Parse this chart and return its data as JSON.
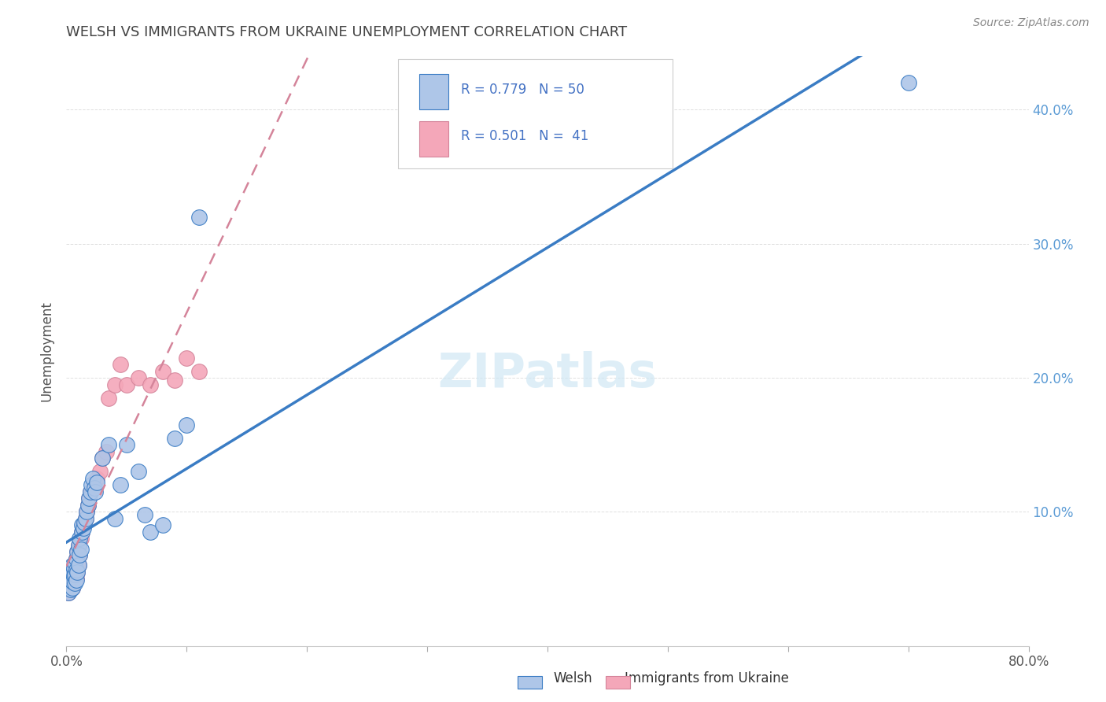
{
  "title": "WELSH VS IMMIGRANTS FROM UKRAINE UNEMPLOYMENT CORRELATION CHART",
  "source": "Source: ZipAtlas.com",
  "ylabel": "Unemployment",
  "welsh_color": "#aec6e8",
  "ukraine_color": "#f4a7b9",
  "welsh_line_color": "#3a7cc4",
  "ukraine_line_color": "#d4849a",
  "title_color": "#444444",
  "axis_label_color": "#5b9bd5",
  "legend_r_color": "#4472c4",
  "watermark_color": "#d0e8f5",
  "welsh_scatter_x": [
    0.002,
    0.003,
    0.003,
    0.004,
    0.004,
    0.005,
    0.005,
    0.005,
    0.006,
    0.006,
    0.007,
    0.007,
    0.007,
    0.008,
    0.008,
    0.008,
    0.009,
    0.009,
    0.01,
    0.01,
    0.011,
    0.011,
    0.012,
    0.013,
    0.013,
    0.014,
    0.015,
    0.016,
    0.017,
    0.018,
    0.019,
    0.02,
    0.021,
    0.022,
    0.023,
    0.024,
    0.025,
    0.03,
    0.035,
    0.04,
    0.045,
    0.05,
    0.06,
    0.065,
    0.07,
    0.08,
    0.09,
    0.1,
    0.11,
    0.7
  ],
  "welsh_scatter_y": [
    0.04,
    0.045,
    0.05,
    0.042,
    0.055,
    0.043,
    0.048,
    0.06,
    0.052,
    0.058,
    0.047,
    0.053,
    0.062,
    0.049,
    0.057,
    0.065,
    0.055,
    0.07,
    0.06,
    0.075,
    0.068,
    0.08,
    0.072,
    0.085,
    0.09,
    0.088,
    0.092,
    0.095,
    0.1,
    0.105,
    0.11,
    0.115,
    0.12,
    0.125,
    0.118,
    0.115,
    0.122,
    0.14,
    0.15,
    0.095,
    0.12,
    0.15,
    0.13,
    0.098,
    0.085,
    0.09,
    0.155,
    0.165,
    0.32,
    0.42
  ],
  "ukraine_scatter_x": [
    0.002,
    0.003,
    0.003,
    0.004,
    0.005,
    0.005,
    0.006,
    0.006,
    0.007,
    0.007,
    0.008,
    0.008,
    0.009,
    0.009,
    0.01,
    0.01,
    0.011,
    0.012,
    0.013,
    0.014,
    0.015,
    0.016,
    0.017,
    0.018,
    0.019,
    0.02,
    0.022,
    0.025,
    0.028,
    0.03,
    0.033,
    0.035,
    0.04,
    0.045,
    0.05,
    0.06,
    0.07,
    0.08,
    0.09,
    0.1,
    0.11
  ],
  "ukraine_scatter_y": [
    0.04,
    0.045,
    0.042,
    0.05,
    0.043,
    0.055,
    0.048,
    0.06,
    0.052,
    0.058,
    0.05,
    0.065,
    0.055,
    0.07,
    0.06,
    0.075,
    0.068,
    0.08,
    0.085,
    0.09,
    0.092,
    0.095,
    0.1,
    0.105,
    0.11,
    0.115,
    0.118,
    0.125,
    0.13,
    0.14,
    0.145,
    0.185,
    0.195,
    0.21,
    0.195,
    0.2,
    0.195,
    0.205,
    0.198,
    0.215,
    0.205
  ],
  "xmin": 0.0,
  "xmax": 0.8,
  "ymin": 0.0,
  "ymax": 0.44,
  "x_ticks": [
    0.0,
    0.1,
    0.2,
    0.3,
    0.4,
    0.5,
    0.6,
    0.7,
    0.8
  ],
  "x_tick_labels": [
    "0.0%",
    "",
    "",
    "",
    "",
    "",
    "",
    "",
    "80.0%"
  ],
  "y_ticks": [
    0.0,
    0.1,
    0.2,
    0.3,
    0.4
  ],
  "y_tick_labels_right": [
    "",
    "10.0%",
    "20.0%",
    "30.0%",
    "40.0%"
  ],
  "background_color": "#ffffff",
  "grid_color": "#e0e0e0"
}
